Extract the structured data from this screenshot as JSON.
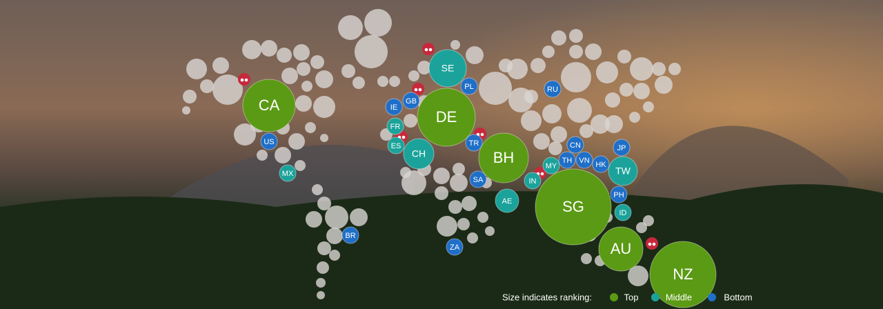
{
  "bubbles": [
    {
      "label": "CA",
      "tier": "Top"
    },
    {
      "label": "US",
      "tier": "Bottom"
    },
    {
      "label": "MX",
      "tier": "Middle"
    },
    {
      "label": "BR",
      "tier": "Bottom"
    },
    {
      "label": "SE",
      "tier": "Middle"
    },
    {
      "label": "PL",
      "tier": "Bottom"
    },
    {
      "label": "GB",
      "tier": "Bottom"
    },
    {
      "label": "IE",
      "tier": "Bottom"
    },
    {
      "label": "DE",
      "tier": "Top"
    },
    {
      "label": "FR",
      "tier": "Middle"
    },
    {
      "label": "ES",
      "tier": "Middle"
    },
    {
      "label": "CH",
      "tier": "Middle"
    },
    {
      "label": "TR",
      "tier": "Bottom"
    },
    {
      "label": "BH",
      "tier": "Top"
    },
    {
      "label": "SA",
      "tier": "Bottom"
    },
    {
      "label": "AE",
      "tier": "Middle"
    },
    {
      "label": "ZA",
      "tier": "Bottom"
    },
    {
      "label": "RU",
      "tier": "Bottom"
    },
    {
      "label": "CN",
      "tier": "Bottom"
    },
    {
      "label": "TH",
      "tier": "Bottom"
    },
    {
      "label": "VN",
      "tier": "Bottom"
    },
    {
      "label": "HK",
      "tier": "Bottom"
    },
    {
      "label": "MY",
      "tier": "Middle"
    },
    {
      "label": "IN",
      "tier": "Middle"
    },
    {
      "label": "JP",
      "tier": "Bottom"
    },
    {
      "label": "TW",
      "tier": "Middle"
    },
    {
      "label": "PH",
      "tier": "Bottom"
    },
    {
      "label": "ID",
      "tier": "Middle"
    },
    {
      "label": "SG",
      "tier": "Top"
    },
    {
      "label": "AU",
      "tier": "Top"
    },
    {
      "label": "NZ",
      "tier": "Top"
    }
  ],
  "legend": {
    "title": "Size indicates ranking:",
    "items": [
      {
        "name": "Top",
        "color": "#5b9a14"
      },
      {
        "name": "Middle",
        "color": "#1ba39b"
      },
      {
        "name": "Bottom",
        "color": "#1f6fc8"
      }
    ]
  }
}
